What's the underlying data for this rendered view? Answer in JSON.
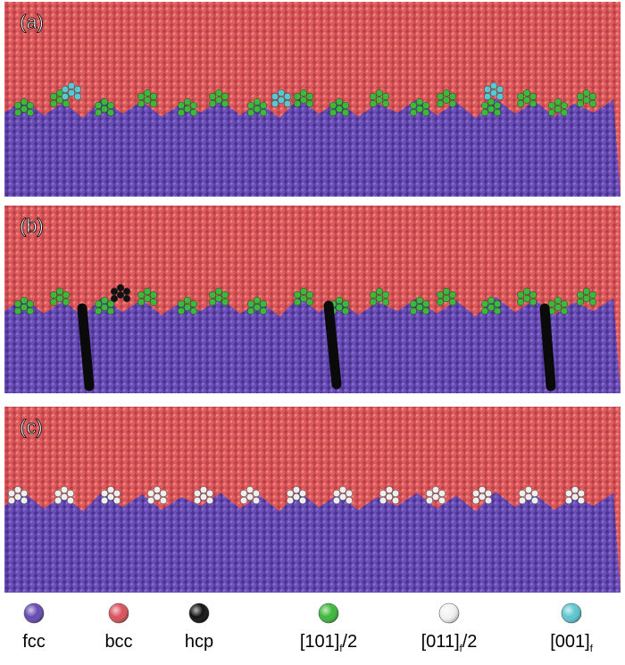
{
  "panels": [
    {
      "label": "(a)"
    },
    {
      "label": "(b)"
    },
    {
      "label": "(c)"
    }
  ],
  "legend": [
    {
      "label": "fcc",
      "color": "#6448b0"
    },
    {
      "label": "bcc",
      "color": "#d9505a"
    },
    {
      "label": "hcp",
      "color": "#111111"
    },
    {
      "label": "[101]",
      "subscript": "f",
      "suffix": "/2",
      "color": "#3cb83a"
    },
    {
      "label": "[011]",
      "subscript": "f",
      "suffix": "/2",
      "color": "#f2f2f2"
    },
    {
      "label": "[001]",
      "subscript": "f",
      "color": "#5cc6d0"
    }
  ]
}
